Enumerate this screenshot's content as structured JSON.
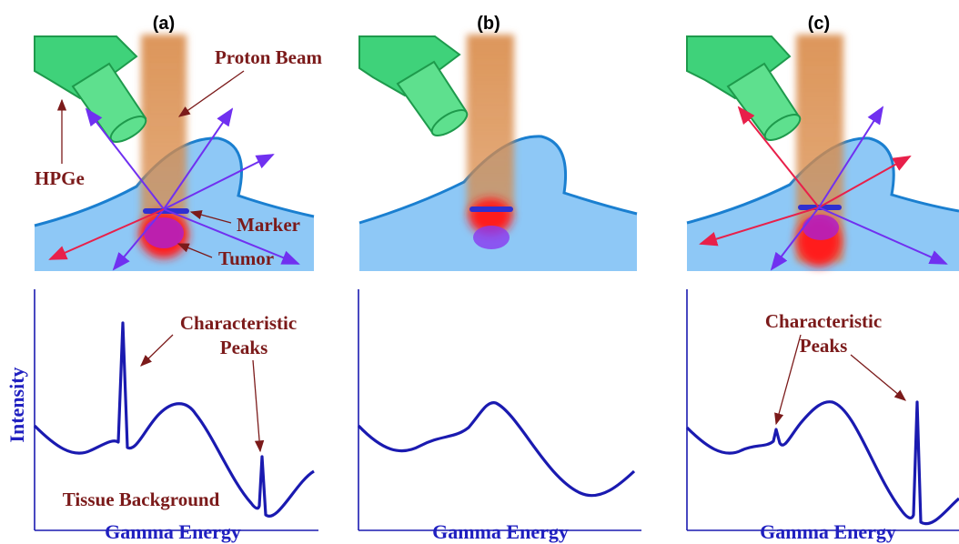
{
  "panels": [
    {
      "label": "(a)",
      "beam_label": "Proton Beam",
      "detector_label": "HPGe",
      "marker_label": "Marker",
      "tumor_label": "Tumor",
      "peaks_label": [
        "Characteristic",
        "Peaks"
      ],
      "y_label": "Intensity",
      "background_label": "Tissue Background",
      "x_label": "Gamma Energy"
    },
    {
      "label": "(b)",
      "x_label": "Gamma Energy"
    },
    {
      "label": "(c)",
      "peaks_label": [
        "Characteristic",
        "Peaks"
      ],
      "x_label": "Gamma Energy"
    }
  ]
}
